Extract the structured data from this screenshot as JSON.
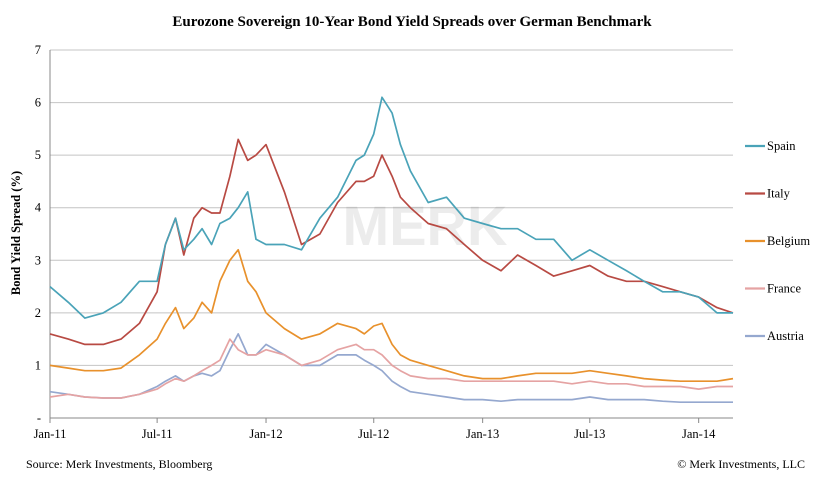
{
  "footer": {
    "source": "Source: Merk Investments, Bloomberg",
    "copyright": "© Merk Investments, LLC"
  },
  "watermark": "MERK",
  "chart_data": {
    "type": "line",
    "title": "Eurozone Sovereign 10-Year Bond Yield Spreads over German Benchmark",
    "xlabel": "",
    "ylabel": "Bond Yield Spread (%)",
    "ylim": [
      0,
      7
    ],
    "yticks": [
      0,
      1,
      2,
      3,
      4,
      5,
      6,
      7
    ],
    "ytick_labels": [
      "-",
      "1",
      "2",
      "3",
      "4",
      "5",
      "6",
      "7"
    ],
    "xticks": [
      "Jan-11",
      "Jul-11",
      "Jan-12",
      "Jul-12",
      "Jan-13",
      "Jul-13",
      "Jan-14"
    ],
    "x_range": [
      "2011-01-01",
      "2014-02-28"
    ],
    "grid": "horizontal",
    "legend": "right",
    "x": [
      "2011-01-01",
      "2011-02-01",
      "2011-03-01",
      "2011-04-01",
      "2011-05-01",
      "2011-06-01",
      "2011-07-01",
      "2011-07-15",
      "2011-08-01",
      "2011-08-15",
      "2011-09-01",
      "2011-09-15",
      "2011-10-01",
      "2011-10-15",
      "2011-11-01",
      "2011-11-15",
      "2011-12-01",
      "2011-12-15",
      "2012-01-01",
      "2012-02-01",
      "2012-03-01",
      "2012-04-01",
      "2012-05-01",
      "2012-06-01",
      "2012-06-15",
      "2012-07-01",
      "2012-07-15",
      "2012-08-01",
      "2012-08-15",
      "2012-09-01",
      "2012-10-01",
      "2012-11-01",
      "2012-12-01",
      "2013-01-01",
      "2013-02-01",
      "2013-03-01",
      "2013-04-01",
      "2013-05-01",
      "2013-06-01",
      "2013-07-01",
      "2013-08-01",
      "2013-09-01",
      "2013-10-01",
      "2013-11-01",
      "2013-12-01",
      "2014-01-01",
      "2014-02-01",
      "2014-02-28"
    ],
    "series": [
      {
        "name": "Spain",
        "color": "#4aa3b8",
        "values": [
          2.5,
          2.2,
          1.9,
          2.0,
          2.2,
          2.6,
          2.6,
          3.3,
          3.8,
          3.2,
          3.4,
          3.6,
          3.3,
          3.7,
          3.8,
          4.0,
          4.3,
          3.4,
          3.3,
          3.3,
          3.2,
          3.8,
          4.2,
          4.9,
          5.0,
          5.4,
          6.1,
          5.8,
          5.2,
          4.7,
          4.1,
          4.2,
          3.8,
          3.7,
          3.6,
          3.6,
          3.4,
          3.4,
          3.0,
          3.2,
          3.0,
          2.8,
          2.6,
          2.4,
          2.4,
          2.3,
          2.0,
          2.0
        ]
      },
      {
        "name": "Italy",
        "color": "#b84a43",
        "values": [
          1.6,
          1.5,
          1.4,
          1.4,
          1.5,
          1.8,
          2.4,
          3.3,
          3.8,
          3.1,
          3.8,
          4.0,
          3.9,
          3.9,
          4.6,
          5.3,
          4.9,
          5.0,
          5.2,
          4.3,
          3.3,
          3.5,
          4.1,
          4.5,
          4.5,
          4.6,
          5.0,
          4.6,
          4.2,
          4.0,
          3.7,
          3.6,
          3.3,
          3.0,
          2.8,
          3.1,
          2.9,
          2.7,
          2.8,
          2.9,
          2.7,
          2.6,
          2.6,
          2.5,
          2.4,
          2.3,
          2.1,
          2.0
        ]
      },
      {
        "name": "Belgium",
        "color": "#e8912c",
        "values": [
          1.0,
          0.95,
          0.9,
          0.9,
          0.95,
          1.2,
          1.5,
          1.8,
          2.1,
          1.7,
          1.9,
          2.2,
          2.0,
          2.6,
          3.0,
          3.2,
          2.6,
          2.4,
          2.0,
          1.7,
          1.5,
          1.6,
          1.8,
          1.7,
          1.6,
          1.75,
          1.8,
          1.4,
          1.2,
          1.1,
          1.0,
          0.9,
          0.8,
          0.75,
          0.75,
          0.8,
          0.85,
          0.85,
          0.85,
          0.9,
          0.85,
          0.8,
          0.75,
          0.72,
          0.7,
          0.7,
          0.7,
          0.75
        ]
      },
      {
        "name": "France",
        "color": "#e5a3a3",
        "values": [
          0.4,
          0.45,
          0.4,
          0.38,
          0.38,
          0.45,
          0.55,
          0.65,
          0.75,
          0.7,
          0.8,
          0.9,
          1.0,
          1.1,
          1.5,
          1.3,
          1.2,
          1.2,
          1.3,
          1.2,
          1.0,
          1.1,
          1.3,
          1.4,
          1.3,
          1.3,
          1.2,
          1.0,
          0.9,
          0.8,
          0.75,
          0.75,
          0.7,
          0.7,
          0.7,
          0.7,
          0.7,
          0.7,
          0.65,
          0.7,
          0.65,
          0.65,
          0.6,
          0.6,
          0.6,
          0.55,
          0.6,
          0.6
        ]
      },
      {
        "name": "Austria",
        "color": "#95a8cf",
        "values": [
          0.5,
          0.45,
          0.4,
          0.38,
          0.38,
          0.45,
          0.6,
          0.7,
          0.8,
          0.7,
          0.8,
          0.85,
          0.8,
          0.9,
          1.3,
          1.6,
          1.2,
          1.2,
          1.4,
          1.2,
          1.0,
          1.0,
          1.2,
          1.2,
          1.1,
          1.0,
          0.9,
          0.7,
          0.6,
          0.5,
          0.45,
          0.4,
          0.35,
          0.35,
          0.32,
          0.35,
          0.35,
          0.35,
          0.35,
          0.4,
          0.35,
          0.35,
          0.35,
          0.32,
          0.3,
          0.3,
          0.3,
          0.3
        ]
      }
    ]
  }
}
